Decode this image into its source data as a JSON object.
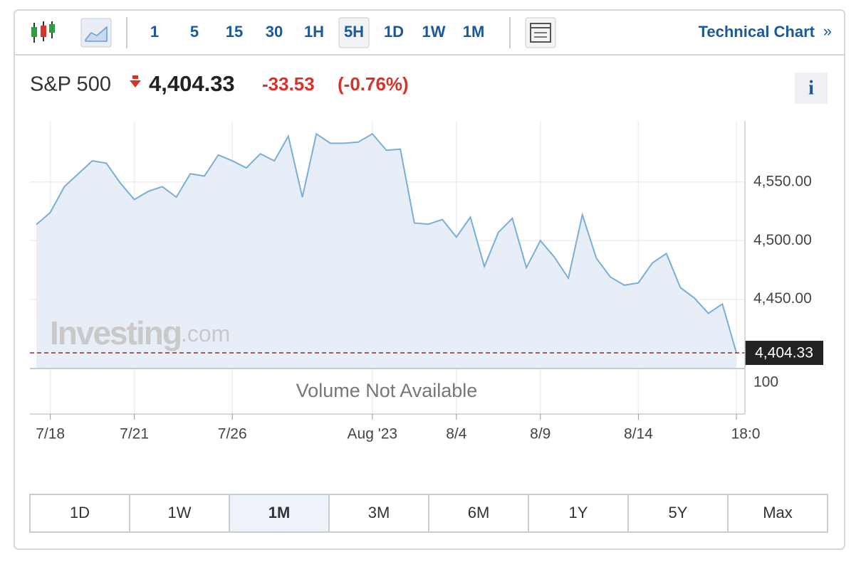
{
  "toolbar": {
    "intervals": [
      "1",
      "5",
      "15",
      "30",
      "1H",
      "5H",
      "1D",
      "1W",
      "1M"
    ],
    "selected_interval": "5H",
    "link": "Technical Chart",
    "link_arrow": "»"
  },
  "quote": {
    "name": "S&P 500",
    "price": "4,404.33",
    "change": "-33.53",
    "change_pct": "(-0.76%)",
    "info": "i"
  },
  "chart_data": {
    "type": "area",
    "categories": [
      null,
      "7/18",
      null,
      null,
      null,
      null,
      null,
      "7/21",
      null,
      null,
      null,
      null,
      null,
      null,
      "7/26",
      null,
      null,
      null,
      null,
      null,
      null,
      null,
      null,
      null,
      "Aug '23",
      null,
      null,
      null,
      null,
      null,
      "8/4",
      null,
      null,
      null,
      null,
      null,
      "8/9",
      null,
      null,
      null,
      null,
      null,
      null,
      "8/14",
      null,
      null,
      null,
      null,
      null,
      null,
      "18:0"
    ],
    "series": [
      {
        "name": "S&P 500",
        "color": "#7aaed6",
        "fill": "#e8eef7",
        "values": [
          4513.6,
          4524,
          4546,
          4557,
          4568,
          4566,
          4549,
          4535,
          4542,
          4546,
          4537,
          4557,
          4555,
          4573,
          4568,
          4562,
          4574,
          4568,
          4589,
          4537,
          4591,
          4583,
          4583,
          4584,
          4591,
          4577,
          4578,
          4515,
          4514,
          4518,
          4503,
          4520,
          4478,
          4507,
          4519,
          4477,
          4500,
          4486,
          4468,
          4522,
          4485,
          4469,
          4462,
          4464,
          4481,
          4489,
          4460,
          4451,
          4438,
          4446,
          4404.33
        ]
      }
    ],
    "ylim": [
      4391,
      4602
    ],
    "yticks": [
      {
        "value": 4450,
        "label": "4,450.00"
      },
      {
        "value": 4500,
        "label": "4,500.00"
      },
      {
        "value": 4550,
        "label": "4,550.00"
      }
    ],
    "grid": true,
    "volume_tick": "100",
    "volume_note": "Volume Not Available",
    "watermark": {
      "brand": "Investing",
      "suffix": ".com"
    }
  },
  "periods": [
    "1D",
    "1W",
    "1M",
    "3M",
    "6M",
    "1Y",
    "5Y",
    "Max"
  ],
  "selected_period": "1M"
}
